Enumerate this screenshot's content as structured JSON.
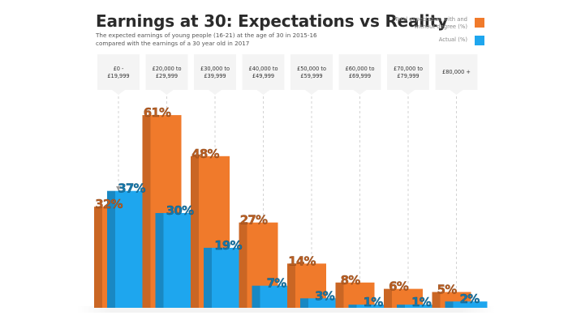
{
  "chart_data": {
    "type": "bar",
    "title": "Earnings at 30: Expectations vs Reality",
    "subtitle": "The expected earnings of young people (16-21) at the age of 30 in 2015-16 compared with the earnings of a 30 year old in 2017",
    "categories": [
      "£0 - £19,999",
      "£20,000 to £29,999",
      "£30,000 to £39,999",
      "£40,000 to £49,999",
      "£50,000 to £59,999",
      "£60,000 to £69,999",
      "£70,000 to £79,999",
      "£80,000 +"
    ],
    "series": [
      {
        "name": "Total expectation with and without degree (%)",
        "color": "#f07a2b",
        "values": [
          32,
          61,
          48,
          27,
          14,
          8,
          6,
          5
        ],
        "labels": [
          "32%",
          "61%",
          "48%",
          "27%",
          "14%",
          "8%",
          "6%",
          "5%"
        ]
      },
      {
        "name": "Actual (%)",
        "color": "#1ea6ee",
        "values": [
          37,
          30,
          19,
          7,
          3,
          1,
          1,
          2
        ],
        "labels": [
          "37%",
          "30%",
          "19%",
          "7%",
          "3%",
          "1%",
          "1%",
          "2%"
        ]
      }
    ],
    "xlabel": "",
    "ylabel": "",
    "ylim": [
      0,
      100
    ],
    "grid": false,
    "legend": "top-right"
  }
}
